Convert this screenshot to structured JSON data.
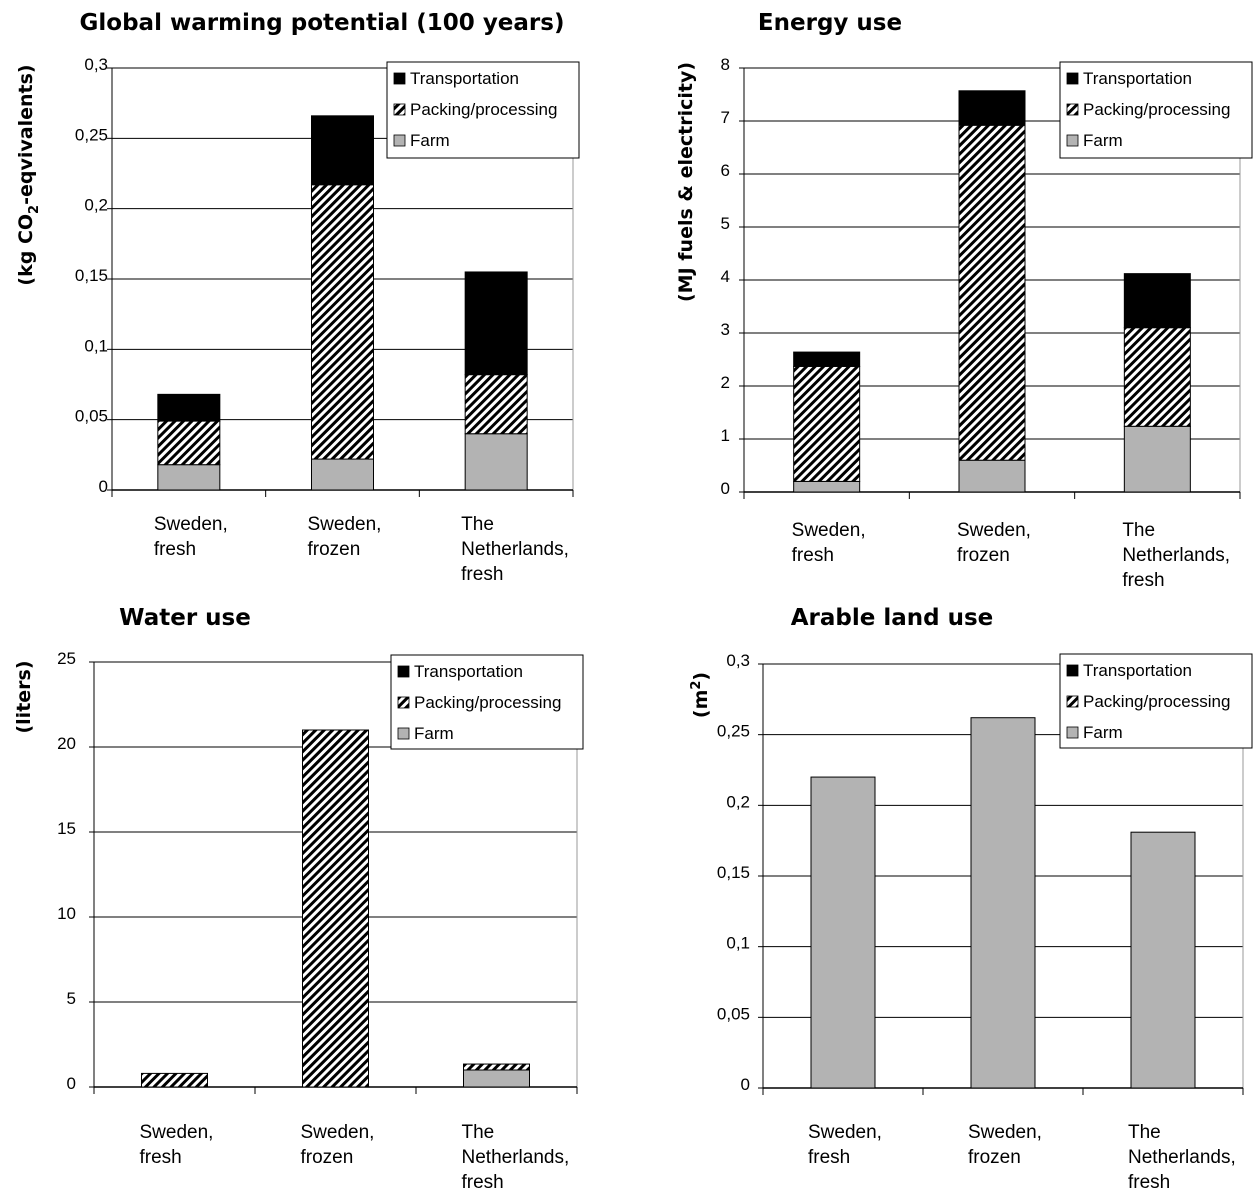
{
  "legend_labels": [
    "Transportation",
    "Packing/processing",
    "Farm"
  ],
  "colors": {
    "Transportation": "#000000",
    "Packing/processing": "hatch",
    "Farm": "#b3b3b3"
  },
  "chart_data": [
    {
      "type": "bar",
      "stacked": true,
      "title": "Global warming potential (100 years)",
      "ylabel": "(kg CO2-eqvivalents)",
      "ylim": [
        0,
        0.3
      ],
      "yticks": [
        "0",
        "0,05",
        "0,1",
        "0,15",
        "0,2",
        "0,25",
        "0,3"
      ],
      "categories": [
        [
          "Sweden,",
          "fresh"
        ],
        [
          "Sweden,",
          "frozen"
        ],
        [
          "The",
          "Netherlands,",
          "fresh"
        ]
      ],
      "series": [
        {
          "name": "Farm",
          "values": [
            0.018,
            0.022,
            0.04
          ]
        },
        {
          "name": "Packing/processing",
          "values": [
            0.031,
            0.195,
            0.042
          ]
        },
        {
          "name": "Transportation",
          "values": [
            0.019,
            0.049,
            0.073
          ]
        }
      ],
      "legend": "top-right",
      "grid": true
    },
    {
      "type": "bar",
      "stacked": true,
      "title": "Energy use",
      "ylabel": "(MJ fuels & electricity)",
      "ylim": [
        0,
        8
      ],
      "yticks": [
        "0",
        "1",
        "2",
        "3",
        "4",
        "5",
        "6",
        "7",
        "8"
      ],
      "categories": [
        [
          "Sweden,",
          "fresh"
        ],
        [
          "Sweden,",
          "frozen"
        ],
        [
          "The",
          "Netherlands,",
          "fresh"
        ]
      ],
      "series": [
        {
          "name": "Farm",
          "values": [
            0.2,
            0.6,
            1.24
          ]
        },
        {
          "name": "Packing/processing",
          "values": [
            2.17,
            6.32,
            1.86
          ]
        },
        {
          "name": "Transportation",
          "values": [
            0.27,
            0.65,
            1.02
          ]
        }
      ],
      "legend": "top-right",
      "grid": true
    },
    {
      "type": "bar",
      "stacked": true,
      "title": "Water use",
      "ylabel": "(liters)",
      "ylim": [
        0,
        25
      ],
      "yticks": [
        "0",
        "5",
        "10",
        "15",
        "20",
        "25"
      ],
      "categories": [
        [
          "Sweden,",
          "fresh"
        ],
        [
          "Sweden,",
          "frozen"
        ],
        [
          "The",
          "Netherlands,",
          "fresh"
        ]
      ],
      "series": [
        {
          "name": "Farm",
          "values": [
            0,
            0,
            1.0
          ]
        },
        {
          "name": "Packing/processing",
          "values": [
            0.8,
            21.0,
            0.35
          ]
        },
        {
          "name": "Transportation",
          "values": [
            0,
            0,
            0
          ]
        }
      ],
      "legend": "top-right",
      "grid": true
    },
    {
      "type": "bar",
      "stacked": true,
      "title": "Arable land use",
      "ylabel": "(m2)",
      "ylim": [
        0,
        0.3
      ],
      "yticks": [
        "0",
        "0,05",
        "0,1",
        "0,15",
        "0,2",
        "0,25",
        "0,3"
      ],
      "categories": [
        [
          "Sweden,",
          "fresh"
        ],
        [
          "Sweden,",
          "frozen"
        ],
        [
          "The",
          "Netherlands,",
          "fresh"
        ]
      ],
      "series": [
        {
          "name": "Farm",
          "values": [
            0.22,
            0.262,
            0.181
          ]
        },
        {
          "name": "Packing/processing",
          "values": [
            0,
            0,
            0
          ]
        },
        {
          "name": "Transportation",
          "values": [
            0,
            0,
            0
          ]
        }
      ],
      "legend": "top-right",
      "grid": true
    }
  ]
}
